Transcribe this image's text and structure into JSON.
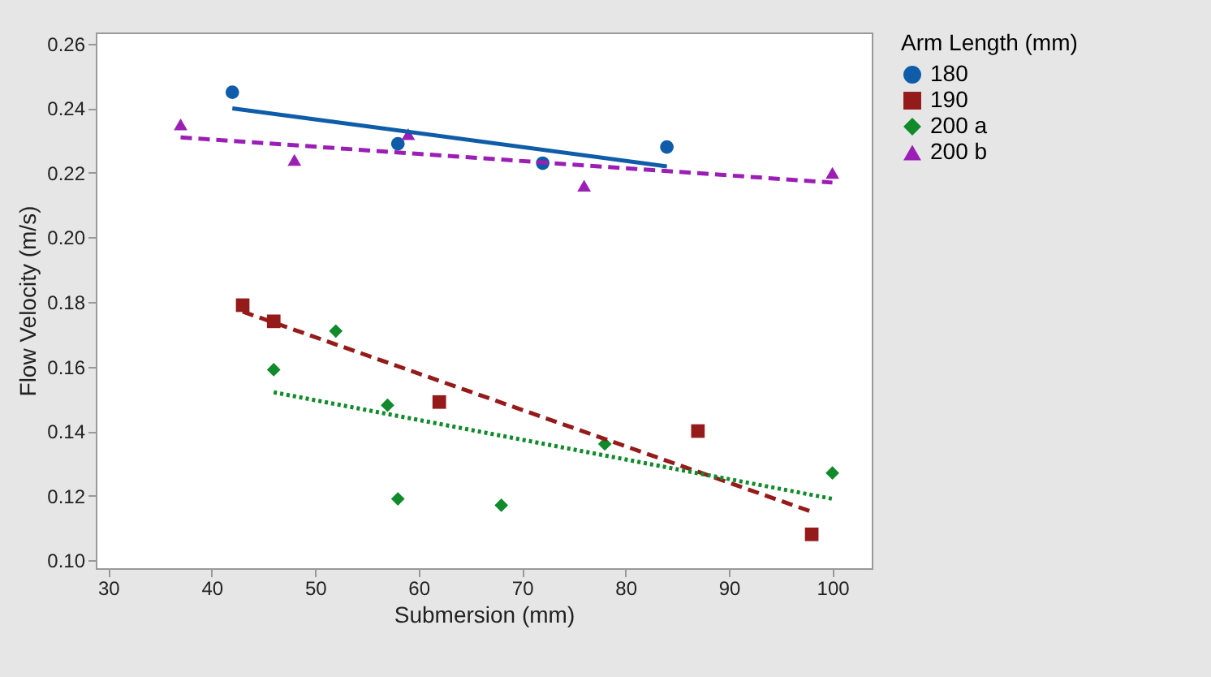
{
  "chart_data": {
    "type": "scatter",
    "xlabel": "Submersion (mm)",
    "ylabel": "Flow Velocity (m/s)",
    "legend_title": "Arm Length (mm)",
    "legend": "right",
    "grid": false,
    "xlim": [
      28.8,
      103.8
    ],
    "ylim": [
      0.0975,
      0.2635
    ],
    "xticks": [
      30,
      40,
      50,
      60,
      70,
      80,
      90,
      100
    ],
    "yticks": [
      {
        "value": 0.1,
        "label": "0.10"
      },
      {
        "value": 0.12,
        "label": "0.12"
      },
      {
        "value": 0.14,
        "label": "0.14"
      },
      {
        "value": 0.16,
        "label": "0.16"
      },
      {
        "value": 0.18,
        "label": "0.18"
      },
      {
        "value": 0.2,
        "label": "0.20"
      },
      {
        "value": 0.22,
        "label": "0.22"
      },
      {
        "value": 0.24,
        "label": "0.24"
      },
      {
        "value": 0.26,
        "label": "0.26"
      }
    ],
    "series": [
      {
        "name": "180",
        "color": "#0f5ca8",
        "marker": "circle",
        "x": [
          42,
          58,
          72,
          84
        ],
        "values": [
          0.245,
          0.229,
          0.223,
          0.228
        ]
      },
      {
        "name": "190",
        "color": "#951b1b",
        "marker": "square",
        "x": [
          43,
          46,
          62,
          87,
          98
        ],
        "values": [
          0.179,
          0.174,
          0.149,
          0.14,
          0.108
        ]
      },
      {
        "name": "200 a",
        "color": "#108a2a",
        "marker": "diamond",
        "x": [
          46,
          52,
          57,
          58,
          68,
          78,
          100
        ],
        "values": [
          0.159,
          0.171,
          0.148,
          0.119,
          0.117,
          0.136,
          0.127
        ]
      },
      {
        "name": "200 b",
        "color": "#9b1fb5",
        "marker": "triangle",
        "x": [
          37,
          48,
          59,
          76,
          100
        ],
        "values": [
          0.235,
          0.224,
          0.232,
          0.216,
          0.22
        ]
      },
      {
        "type": "line",
        "color": "#0f5ca8",
        "line_style": "solid",
        "x": [
          42,
          84
        ],
        "values": [
          0.24,
          0.222
        ]
      },
      {
        "type": "line",
        "color": "#951b1b",
        "line_style": "dashed",
        "x": [
          43,
          98
        ],
        "values": [
          0.177,
          0.115
        ]
      },
      {
        "type": "line",
        "color": "#108a2a",
        "line_style": "dotted",
        "x": [
          46,
          100
        ],
        "values": [
          0.152,
          0.119
        ]
      },
      {
        "type": "line",
        "color": "#9b1fb5",
        "line_style": "dashed",
        "x": [
          37,
          100
        ],
        "values": [
          0.231,
          0.217
        ]
      }
    ]
  }
}
